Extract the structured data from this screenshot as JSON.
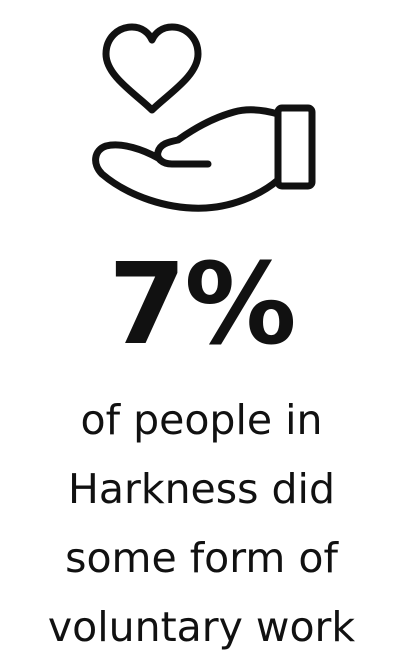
{
  "infographic": {
    "icon": "heart-in-hand-icon",
    "stat_value": "7%",
    "caption_lines": [
      "of people in",
      "Harkness did",
      "some form of",
      "voluntary work"
    ]
  },
  "colors": {
    "ink": "#111111",
    "background": "#ffffff"
  }
}
